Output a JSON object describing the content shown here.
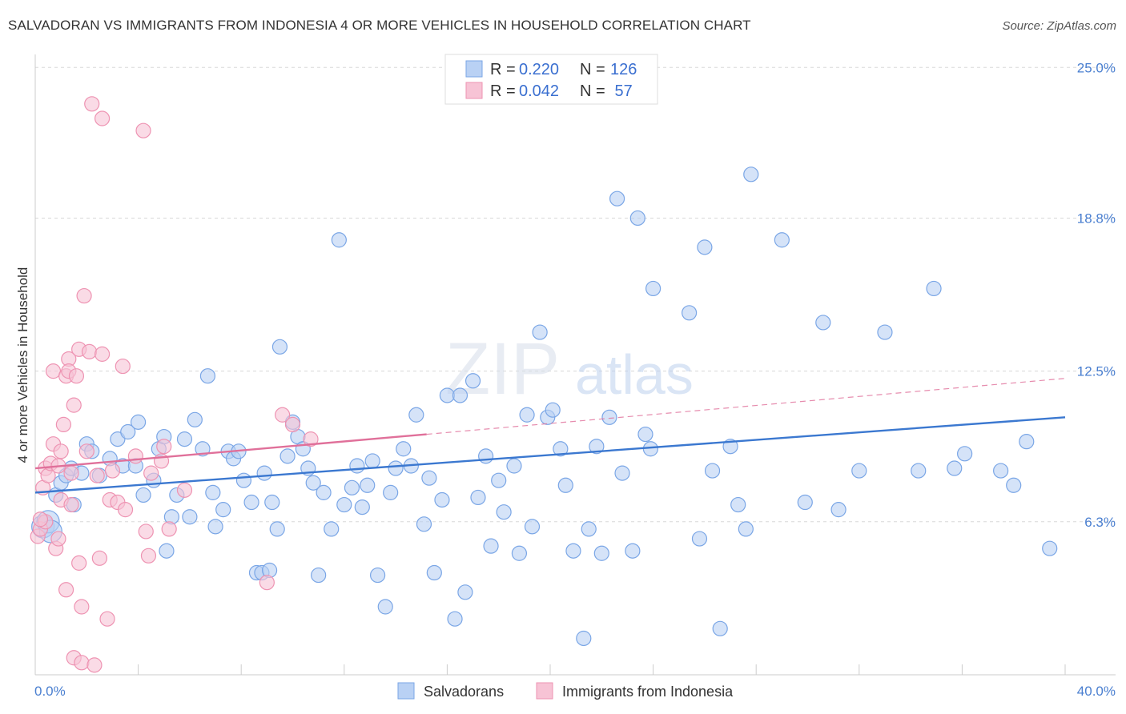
{
  "title": "SALVADORAN VS IMMIGRANTS FROM INDONESIA 4 OR MORE VEHICLES IN HOUSEHOLD CORRELATION CHART",
  "source": "Source: ZipAtlas.com",
  "watermark": {
    "zip": "ZIP",
    "atlas": "atlas"
  },
  "colors": {
    "blue": "#7aa6e6",
    "blue_fill": "#b9d1f4",
    "pink": "#ee93b2",
    "pink_fill": "#f7c3d5",
    "blue_line": "#3b78d0",
    "pink_line": "#e0709a"
  },
  "legend": {
    "rows": [
      {
        "r_label": "R = ",
        "r_value": "0.220",
        "n_label": "N = ",
        "n_value": "126"
      },
      {
        "r_label": "R = ",
        "r_value": "0.042",
        "n_label": "N = ",
        "n_value": " 57"
      }
    ]
  },
  "chart_data": {
    "type": "scatter",
    "ylabel": "4 or more Vehicles in Household",
    "xlim": [
      0,
      40
    ],
    "ylim": [
      0,
      25.8
    ],
    "x_tick_labels": [
      "0.0%",
      "40.0%"
    ],
    "y_ticks": [
      6.3,
      12.5,
      18.8,
      25.0
    ],
    "y_tick_labels": [
      "6.3%",
      "12.5%",
      "18.8%",
      "25.0%"
    ],
    "legend_placement": "top-center",
    "grid": true,
    "series": [
      {
        "name": "Salvadorans",
        "color": "#7aa6e6",
        "trend": {
          "x": [
            0,
            40
          ],
          "y": [
            7.5,
            10.6
          ]
        },
        "points": [
          [
            0.3,
            6.1
          ],
          [
            0.5,
            6.3
          ],
          [
            0.6,
            5.9
          ],
          [
            0.8,
            7.4
          ],
          [
            1.0,
            7.9
          ],
          [
            1.2,
            8.2
          ],
          [
            1.4,
            8.5
          ],
          [
            1.5,
            7.0
          ],
          [
            1.8,
            8.3
          ],
          [
            2.0,
            9.5
          ],
          [
            2.2,
            9.2
          ],
          [
            2.5,
            8.2
          ],
          [
            2.9,
            8.9
          ],
          [
            3.2,
            9.7
          ],
          [
            3.4,
            8.6
          ],
          [
            3.6,
            10.0
          ],
          [
            3.9,
            8.6
          ],
          [
            4.0,
            10.4
          ],
          [
            4.2,
            7.4
          ],
          [
            4.6,
            8.0
          ],
          [
            4.8,
            9.3
          ],
          [
            5.0,
            9.8
          ],
          [
            5.1,
            5.1
          ],
          [
            5.3,
            6.5
          ],
          [
            5.5,
            7.4
          ],
          [
            5.8,
            9.7
          ],
          [
            6.0,
            6.5
          ],
          [
            6.2,
            10.5
          ],
          [
            6.5,
            9.3
          ],
          [
            6.7,
            12.3
          ],
          [
            6.9,
            7.5
          ],
          [
            7.0,
            6.1
          ],
          [
            7.3,
            6.8
          ],
          [
            7.5,
            9.2
          ],
          [
            7.7,
            8.9
          ],
          [
            7.9,
            9.2
          ],
          [
            8.1,
            8.0
          ],
          [
            8.4,
            7.1
          ],
          [
            8.6,
            4.2
          ],
          [
            8.8,
            4.2
          ],
          [
            8.9,
            8.3
          ],
          [
            9.1,
            4.3
          ],
          [
            9.2,
            7.1
          ],
          [
            9.4,
            6.0
          ],
          [
            9.5,
            13.5
          ],
          [
            9.8,
            9.0
          ],
          [
            10.0,
            10.4
          ],
          [
            10.2,
            9.8
          ],
          [
            10.4,
            9.3
          ],
          [
            10.6,
            8.5
          ],
          [
            10.8,
            7.9
          ],
          [
            11.0,
            4.1
          ],
          [
            11.2,
            7.5
          ],
          [
            11.5,
            6.0
          ],
          [
            11.8,
            17.9
          ],
          [
            12.0,
            7.0
          ],
          [
            12.3,
            7.7
          ],
          [
            12.5,
            8.6
          ],
          [
            12.7,
            6.9
          ],
          [
            12.9,
            7.8
          ],
          [
            13.1,
            8.8
          ],
          [
            13.3,
            4.1
          ],
          [
            13.6,
            2.8
          ],
          [
            13.8,
            7.5
          ],
          [
            14.0,
            8.5
          ],
          [
            14.3,
            9.3
          ],
          [
            14.6,
            8.6
          ],
          [
            14.8,
            10.7
          ],
          [
            15.1,
            6.2
          ],
          [
            15.3,
            8.1
          ],
          [
            15.5,
            4.2
          ],
          [
            15.8,
            7.2
          ],
          [
            16.0,
            11.5
          ],
          [
            16.3,
            2.3
          ],
          [
            16.5,
            11.5
          ],
          [
            16.7,
            3.4
          ],
          [
            17.0,
            12.1
          ],
          [
            17.2,
            7.3
          ],
          [
            17.5,
            9.0
          ],
          [
            17.7,
            5.3
          ],
          [
            18.0,
            8.0
          ],
          [
            18.2,
            6.7
          ],
          [
            18.6,
            8.6
          ],
          [
            18.8,
            5.0
          ],
          [
            19.1,
            10.7
          ],
          [
            19.3,
            6.1
          ],
          [
            19.6,
            14.1
          ],
          [
            19.9,
            10.6
          ],
          [
            20.1,
            10.9
          ],
          [
            20.4,
            9.3
          ],
          [
            20.6,
            7.8
          ],
          [
            20.9,
            5.1
          ],
          [
            21.3,
            1.5
          ],
          [
            21.5,
            6.0
          ],
          [
            21.8,
            9.4
          ],
          [
            22.0,
            5.0
          ],
          [
            22.3,
            10.6
          ],
          [
            22.6,
            19.6
          ],
          [
            22.8,
            8.3
          ],
          [
            23.2,
            5.1
          ],
          [
            23.4,
            18.8
          ],
          [
            23.7,
            9.9
          ],
          [
            23.9,
            9.3
          ],
          [
            24.0,
            15.9
          ],
          [
            25.4,
            14.9
          ],
          [
            25.8,
            5.6
          ],
          [
            26.0,
            17.6
          ],
          [
            26.3,
            8.4
          ],
          [
            26.6,
            1.9
          ],
          [
            27.0,
            9.4
          ],
          [
            27.3,
            7.0
          ],
          [
            27.6,
            6.0
          ],
          [
            27.8,
            20.6
          ],
          [
            29.0,
            17.9
          ],
          [
            29.9,
            7.1
          ],
          [
            30.6,
            14.5
          ],
          [
            31.2,
            6.8
          ],
          [
            32.0,
            8.4
          ],
          [
            33.0,
            14.1
          ],
          [
            34.3,
            8.4
          ],
          [
            34.9,
            15.9
          ],
          [
            35.7,
            8.5
          ],
          [
            36.1,
            9.1
          ],
          [
            37.5,
            8.4
          ],
          [
            38.0,
            7.8
          ],
          [
            38.5,
            9.6
          ],
          [
            39.4,
            5.2
          ]
        ]
      },
      {
        "name": "Immigrants from Indonesia",
        "color": "#ee93b2",
        "trend": {
          "x": [
            0,
            15.2
          ],
          "y": [
            8.5,
            9.9
          ]
        },
        "trend_dashed": {
          "x": [
            15.2,
            40
          ],
          "y": [
            9.9,
            12.2
          ]
        },
        "points": [
          [
            0.1,
            5.7
          ],
          [
            0.2,
            6.0
          ],
          [
            0.3,
            7.7
          ],
          [
            0.4,
            8.5
          ],
          [
            0.4,
            6.3
          ],
          [
            0.5,
            8.2
          ],
          [
            0.6,
            8.7
          ],
          [
            0.7,
            9.5
          ],
          [
            0.7,
            12.5
          ],
          [
            0.8,
            5.2
          ],
          [
            0.9,
            8.6
          ],
          [
            0.9,
            5.6
          ],
          [
            1.0,
            9.2
          ],
          [
            1.0,
            7.2
          ],
          [
            1.1,
            10.3
          ],
          [
            1.2,
            12.3
          ],
          [
            1.2,
            3.5
          ],
          [
            1.3,
            13.0
          ],
          [
            1.3,
            12.5
          ],
          [
            1.4,
            7.0
          ],
          [
            1.4,
            8.3
          ],
          [
            1.5,
            11.1
          ],
          [
            1.5,
            0.7
          ],
          [
            1.6,
            12.3
          ],
          [
            1.7,
            13.4
          ],
          [
            1.7,
            4.6
          ],
          [
            1.8,
            0.5
          ],
          [
            1.8,
            2.8
          ],
          [
            1.9,
            15.6
          ],
          [
            2.0,
            9.2
          ],
          [
            2.1,
            13.3
          ],
          [
            2.2,
            23.5
          ],
          [
            2.3,
            0.4
          ],
          [
            2.4,
            8.2
          ],
          [
            2.5,
            4.8
          ],
          [
            2.6,
            13.2
          ],
          [
            2.6,
            22.9
          ],
          [
            2.8,
            2.3
          ],
          [
            2.9,
            7.2
          ],
          [
            3.0,
            8.4
          ],
          [
            3.2,
            7.1
          ],
          [
            3.4,
            12.7
          ],
          [
            3.5,
            6.8
          ],
          [
            3.9,
            9.0
          ],
          [
            4.2,
            22.4
          ],
          [
            4.3,
            5.9
          ],
          [
            4.4,
            4.9
          ],
          [
            4.5,
            8.3
          ],
          [
            4.9,
            8.8
          ],
          [
            5.0,
            9.4
          ],
          [
            5.2,
            6.0
          ],
          [
            5.8,
            7.6
          ],
          [
            9.0,
            3.8
          ],
          [
            9.6,
            10.7
          ],
          [
            10.0,
            10.3
          ],
          [
            10.7,
            9.7
          ],
          [
            0.2,
            6.4
          ]
        ]
      }
    ]
  }
}
